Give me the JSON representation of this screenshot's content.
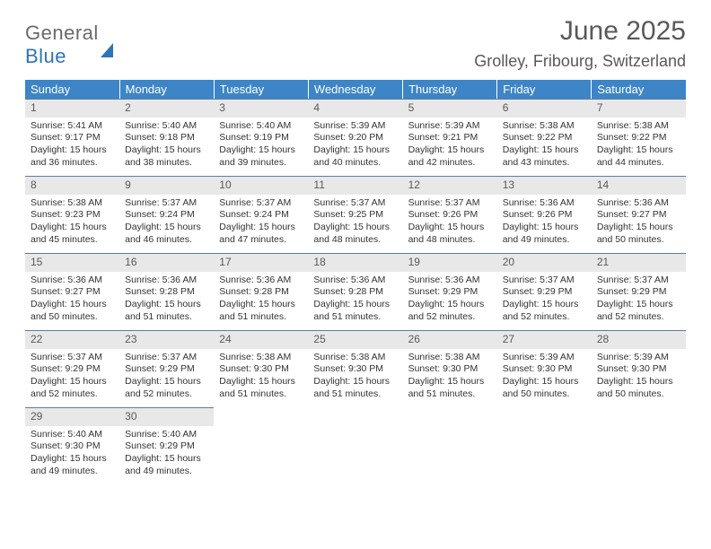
{
  "logo": {
    "word1": "General",
    "word2": "Blue"
  },
  "header": {
    "month_title": "June 2025",
    "location": "Grolley, Fribourg, Switzerland"
  },
  "colors": {
    "header_bg": "#3d85c6",
    "header_text": "#ffffff",
    "daynum_bg": "#e8e8e8",
    "daynum_border": "#5b7ca3",
    "text": "#333333",
    "title_text": "#595959",
    "logo_gray": "#6a6a6a",
    "logo_blue": "#2f74b5"
  },
  "weekdays": [
    "Sunday",
    "Monday",
    "Tuesday",
    "Wednesday",
    "Thursday",
    "Friday",
    "Saturday"
  ],
  "weeks": [
    [
      {
        "n": "1",
        "sr": "Sunrise: 5:41 AM",
        "ss": "Sunset: 9:17 PM",
        "d1": "Daylight: 15 hours",
        "d2": "and 36 minutes."
      },
      {
        "n": "2",
        "sr": "Sunrise: 5:40 AM",
        "ss": "Sunset: 9:18 PM",
        "d1": "Daylight: 15 hours",
        "d2": "and 38 minutes."
      },
      {
        "n": "3",
        "sr": "Sunrise: 5:40 AM",
        "ss": "Sunset: 9:19 PM",
        "d1": "Daylight: 15 hours",
        "d2": "and 39 minutes."
      },
      {
        "n": "4",
        "sr": "Sunrise: 5:39 AM",
        "ss": "Sunset: 9:20 PM",
        "d1": "Daylight: 15 hours",
        "d2": "and 40 minutes."
      },
      {
        "n": "5",
        "sr": "Sunrise: 5:39 AM",
        "ss": "Sunset: 9:21 PM",
        "d1": "Daylight: 15 hours",
        "d2": "and 42 minutes."
      },
      {
        "n": "6",
        "sr": "Sunrise: 5:38 AM",
        "ss": "Sunset: 9:22 PM",
        "d1": "Daylight: 15 hours",
        "d2": "and 43 minutes."
      },
      {
        "n": "7",
        "sr": "Sunrise: 5:38 AM",
        "ss": "Sunset: 9:22 PM",
        "d1": "Daylight: 15 hours",
        "d2": "and 44 minutes."
      }
    ],
    [
      {
        "n": "8",
        "sr": "Sunrise: 5:38 AM",
        "ss": "Sunset: 9:23 PM",
        "d1": "Daylight: 15 hours",
        "d2": "and 45 minutes."
      },
      {
        "n": "9",
        "sr": "Sunrise: 5:37 AM",
        "ss": "Sunset: 9:24 PM",
        "d1": "Daylight: 15 hours",
        "d2": "and 46 minutes."
      },
      {
        "n": "10",
        "sr": "Sunrise: 5:37 AM",
        "ss": "Sunset: 9:24 PM",
        "d1": "Daylight: 15 hours",
        "d2": "and 47 minutes."
      },
      {
        "n": "11",
        "sr": "Sunrise: 5:37 AM",
        "ss": "Sunset: 9:25 PM",
        "d1": "Daylight: 15 hours",
        "d2": "and 48 minutes."
      },
      {
        "n": "12",
        "sr": "Sunrise: 5:37 AM",
        "ss": "Sunset: 9:26 PM",
        "d1": "Daylight: 15 hours",
        "d2": "and 48 minutes."
      },
      {
        "n": "13",
        "sr": "Sunrise: 5:36 AM",
        "ss": "Sunset: 9:26 PM",
        "d1": "Daylight: 15 hours",
        "d2": "and 49 minutes."
      },
      {
        "n": "14",
        "sr": "Sunrise: 5:36 AM",
        "ss": "Sunset: 9:27 PM",
        "d1": "Daylight: 15 hours",
        "d2": "and 50 minutes."
      }
    ],
    [
      {
        "n": "15",
        "sr": "Sunrise: 5:36 AM",
        "ss": "Sunset: 9:27 PM",
        "d1": "Daylight: 15 hours",
        "d2": "and 50 minutes."
      },
      {
        "n": "16",
        "sr": "Sunrise: 5:36 AM",
        "ss": "Sunset: 9:28 PM",
        "d1": "Daylight: 15 hours",
        "d2": "and 51 minutes."
      },
      {
        "n": "17",
        "sr": "Sunrise: 5:36 AM",
        "ss": "Sunset: 9:28 PM",
        "d1": "Daylight: 15 hours",
        "d2": "and 51 minutes."
      },
      {
        "n": "18",
        "sr": "Sunrise: 5:36 AM",
        "ss": "Sunset: 9:28 PM",
        "d1": "Daylight: 15 hours",
        "d2": "and 51 minutes."
      },
      {
        "n": "19",
        "sr": "Sunrise: 5:36 AM",
        "ss": "Sunset: 9:29 PM",
        "d1": "Daylight: 15 hours",
        "d2": "and 52 minutes."
      },
      {
        "n": "20",
        "sr": "Sunrise: 5:37 AM",
        "ss": "Sunset: 9:29 PM",
        "d1": "Daylight: 15 hours",
        "d2": "and 52 minutes."
      },
      {
        "n": "21",
        "sr": "Sunrise: 5:37 AM",
        "ss": "Sunset: 9:29 PM",
        "d1": "Daylight: 15 hours",
        "d2": "and 52 minutes."
      }
    ],
    [
      {
        "n": "22",
        "sr": "Sunrise: 5:37 AM",
        "ss": "Sunset: 9:29 PM",
        "d1": "Daylight: 15 hours",
        "d2": "and 52 minutes."
      },
      {
        "n": "23",
        "sr": "Sunrise: 5:37 AM",
        "ss": "Sunset: 9:29 PM",
        "d1": "Daylight: 15 hours",
        "d2": "and 52 minutes."
      },
      {
        "n": "24",
        "sr": "Sunrise: 5:38 AM",
        "ss": "Sunset: 9:30 PM",
        "d1": "Daylight: 15 hours",
        "d2": "and 51 minutes."
      },
      {
        "n": "25",
        "sr": "Sunrise: 5:38 AM",
        "ss": "Sunset: 9:30 PM",
        "d1": "Daylight: 15 hours",
        "d2": "and 51 minutes."
      },
      {
        "n": "26",
        "sr": "Sunrise: 5:38 AM",
        "ss": "Sunset: 9:30 PM",
        "d1": "Daylight: 15 hours",
        "d2": "and 51 minutes."
      },
      {
        "n": "27",
        "sr": "Sunrise: 5:39 AM",
        "ss": "Sunset: 9:30 PM",
        "d1": "Daylight: 15 hours",
        "d2": "and 50 minutes."
      },
      {
        "n": "28",
        "sr": "Sunrise: 5:39 AM",
        "ss": "Sunset: 9:30 PM",
        "d1": "Daylight: 15 hours",
        "d2": "and 50 minutes."
      }
    ],
    [
      {
        "n": "29",
        "sr": "Sunrise: 5:40 AM",
        "ss": "Sunset: 9:30 PM",
        "d1": "Daylight: 15 hours",
        "d2": "and 49 minutes."
      },
      {
        "n": "30",
        "sr": "Sunrise: 5:40 AM",
        "ss": "Sunset: 9:29 PM",
        "d1": "Daylight: 15 hours",
        "d2": "and 49 minutes."
      },
      null,
      null,
      null,
      null,
      null
    ]
  ]
}
